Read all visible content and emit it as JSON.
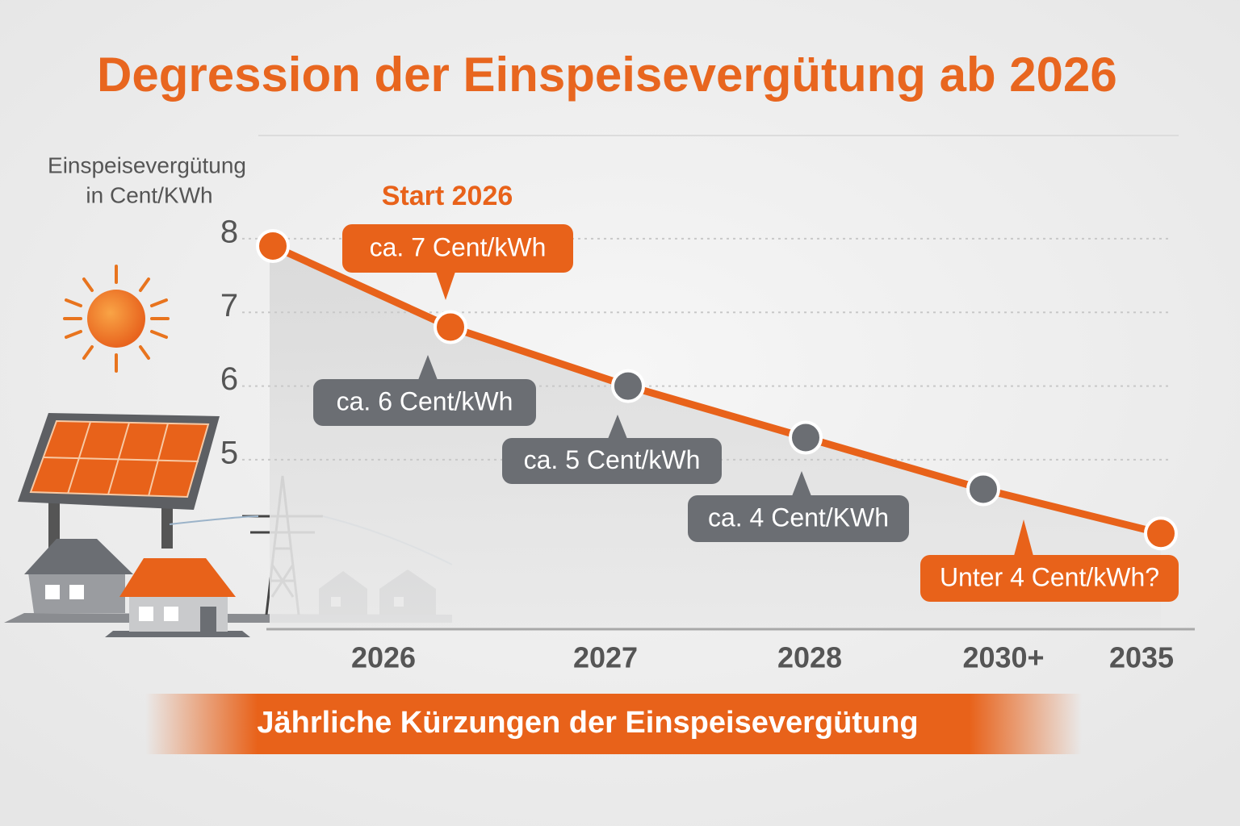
{
  "chart_data": {
    "type": "line",
    "title": "Degression der Einspeisevergütung ab 2026",
    "y_label": [
      "Einspeisevergütung",
      "in Cent/KWh"
    ],
    "subtitle": "Jährliche Kürzungen der Einspeisevergütung",
    "start_label": "Start 2026",
    "categories": [
      null,
      null,
      null,
      null,
      null,
      null
    ],
    "x_tick_labels": [
      "2026",
      "2027",
      "2028",
      "2030+",
      "2035"
    ],
    "series": [
      {
        "color": "#e8621a",
        "values": [
          7.9,
          6.8,
          6.0,
          5.3,
          4.6,
          4.0
        ],
        "point_colors": [
          "#e8621a",
          "#e8621a",
          "#6b6e73",
          "#6b6e73",
          "#6b6e73",
          "#e8621a"
        ]
      }
    ],
    "annotations": [
      "ca. 7 Cent/kWh",
      "ca. 6 Cent/kWh",
      "ca. 5 Cent/kWh",
      "ca. 4 Cent/KWh",
      "Unter 4 Cent/kWh?"
    ],
    "annotation_colors": [
      "#e8621a",
      "#6b6e73",
      "#6b6e73",
      "#6b6e73",
      "#e8621a"
    ],
    "ylim": [
      2.7,
      9.4
    ],
    "yticks": [
      5,
      6,
      7,
      8
    ],
    "grid": true
  }
}
